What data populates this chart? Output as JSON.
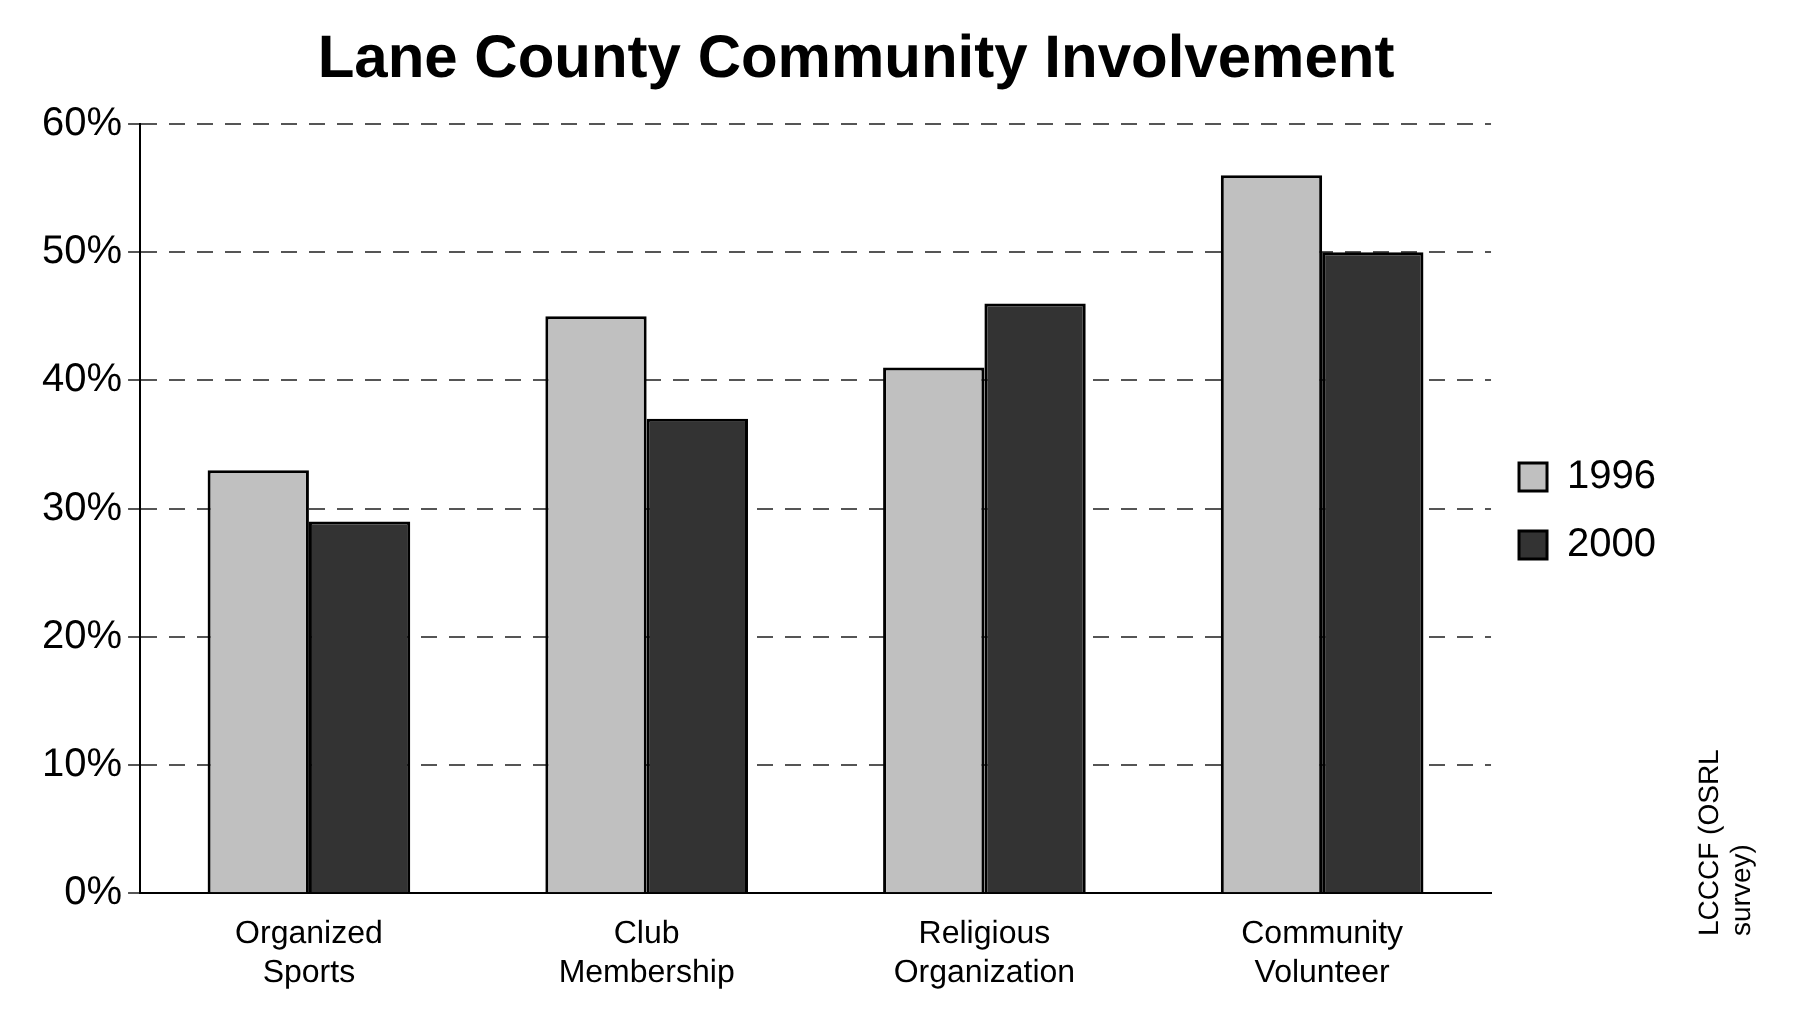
{
  "chart_data": {
    "type": "bar",
    "title": "Lane County Community Involvement",
    "categories": [
      "Organized Sports",
      "Club Membership",
      "Religious Organization",
      "Community Volunteer"
    ],
    "series": [
      {
        "name": "1996",
        "color": "#c0c0c0",
        "values": [
          33,
          45,
          41,
          56
        ]
      },
      {
        "name": "2000",
        "color": "#333333",
        "values": [
          29,
          37,
          46,
          50
        ]
      }
    ],
    "ylim": [
      0,
      60
    ],
    "yticks": [
      {
        "value": 0,
        "label": "0%"
      },
      {
        "value": 10,
        "label": "10%"
      },
      {
        "value": 20,
        "label": "20%"
      },
      {
        "value": 30,
        "label": "30%"
      },
      {
        "value": 40,
        "label": "40%"
      },
      {
        "value": 50,
        "label": "50%"
      },
      {
        "value": 60,
        "label": "60%"
      }
    ],
    "grid": "y",
    "legend": "right",
    "annotations": [
      "LCCCF (OSRL survey)"
    ]
  }
}
